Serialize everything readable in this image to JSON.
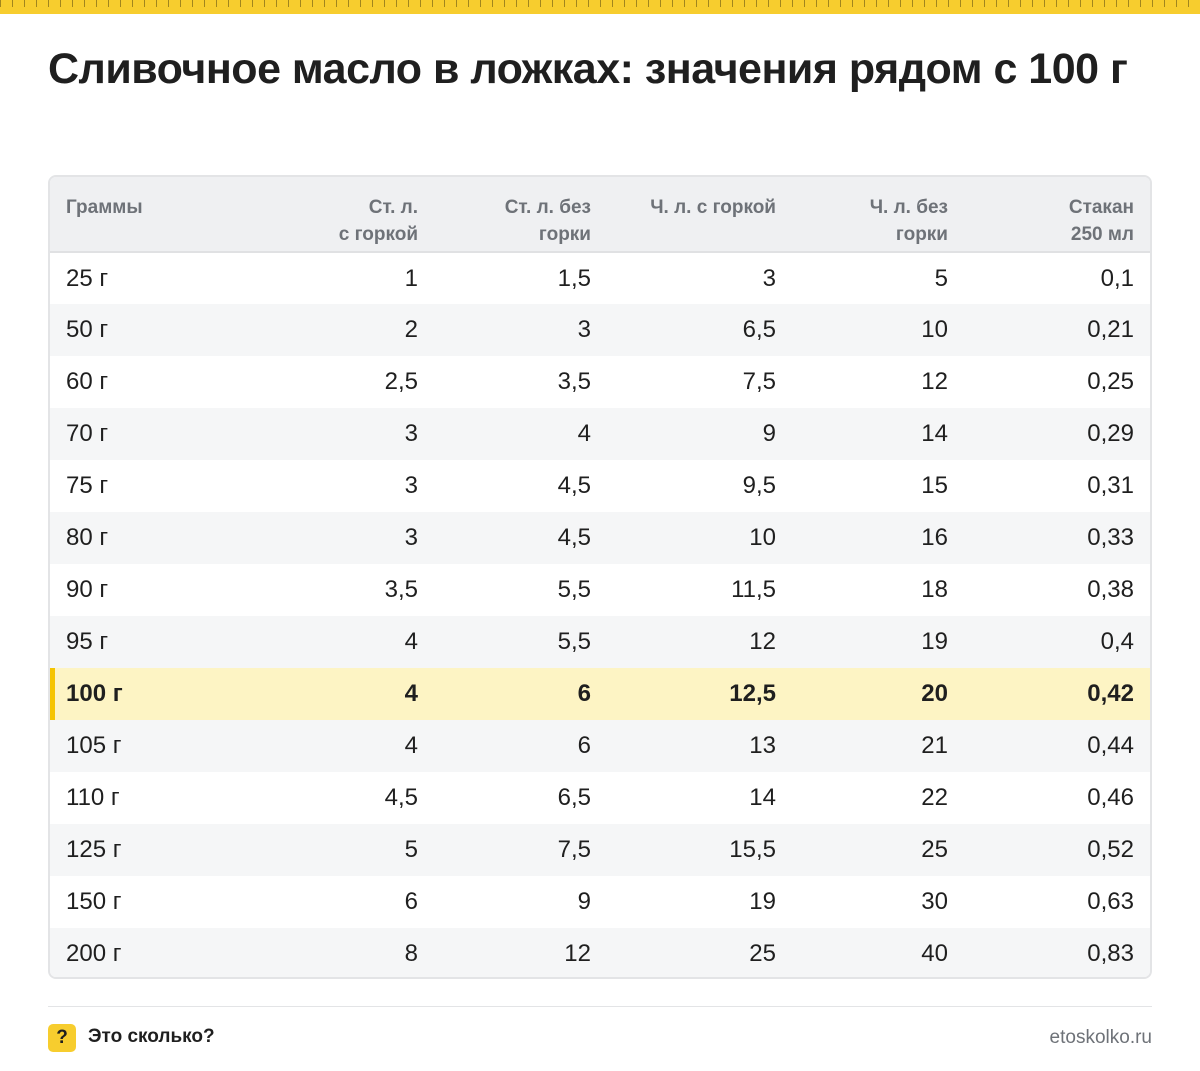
{
  "title": "Сливочное масло в ложках: значения рядом с 100 г",
  "chart_data": {
    "type": "table",
    "columns": [
      {
        "line1": "Граммы",
        "line2": ""
      },
      {
        "line1": "Ст. л.",
        "line2": "с горкой"
      },
      {
        "line1": "Ст. л. без",
        "line2": "горки"
      },
      {
        "line1": "Ч. л. с горкой",
        "line2": ""
      },
      {
        "line1": "Ч. л. без",
        "line2": "горки"
      },
      {
        "line1": "Стакан",
        "line2": "250 мл"
      }
    ],
    "rows": [
      [
        "25 г",
        "1",
        "1,5",
        "3",
        "5",
        "0,1"
      ],
      [
        "50 г",
        "2",
        "3",
        "6,5",
        "10",
        "0,21"
      ],
      [
        "60 г",
        "2,5",
        "3,5",
        "7,5",
        "12",
        "0,25"
      ],
      [
        "70 г",
        "3",
        "4",
        "9",
        "14",
        "0,29"
      ],
      [
        "75 г",
        "3",
        "4,5",
        "9,5",
        "15",
        "0,31"
      ],
      [
        "80 г",
        "3",
        "4,5",
        "10",
        "16",
        "0,33"
      ],
      [
        "90 г",
        "3,5",
        "5,5",
        "11,5",
        "18",
        "0,38"
      ],
      [
        "95 г",
        "4",
        "5,5",
        "12",
        "19",
        "0,4"
      ],
      [
        "100 г",
        "4",
        "6",
        "12,5",
        "20",
        "0,42"
      ],
      [
        "105 г",
        "4",
        "6",
        "13",
        "21",
        "0,44"
      ],
      [
        "110 г",
        "4,5",
        "6,5",
        "14",
        "22",
        "0,46"
      ],
      [
        "125 г",
        "5",
        "7,5",
        "15,5",
        "25",
        "0,52"
      ],
      [
        "150 г",
        "6",
        "9",
        "19",
        "30",
        "0,63"
      ],
      [
        "200 г",
        "8",
        "12",
        "25",
        "40",
        "0,83"
      ]
    ],
    "highlight_row": 8
  },
  "colors": {
    "accent": "#f7cd2e",
    "highlight_bg": "#fdf4c4",
    "highlight_bar": "#f5c400",
    "header_bg": "#eff0f2",
    "stripe_bg": "#f5f6f7"
  },
  "footer": {
    "icon": "question-mark-icon",
    "icon_glyph": "?",
    "brand": "Это сколько?",
    "site": "etoskolko.ru"
  }
}
